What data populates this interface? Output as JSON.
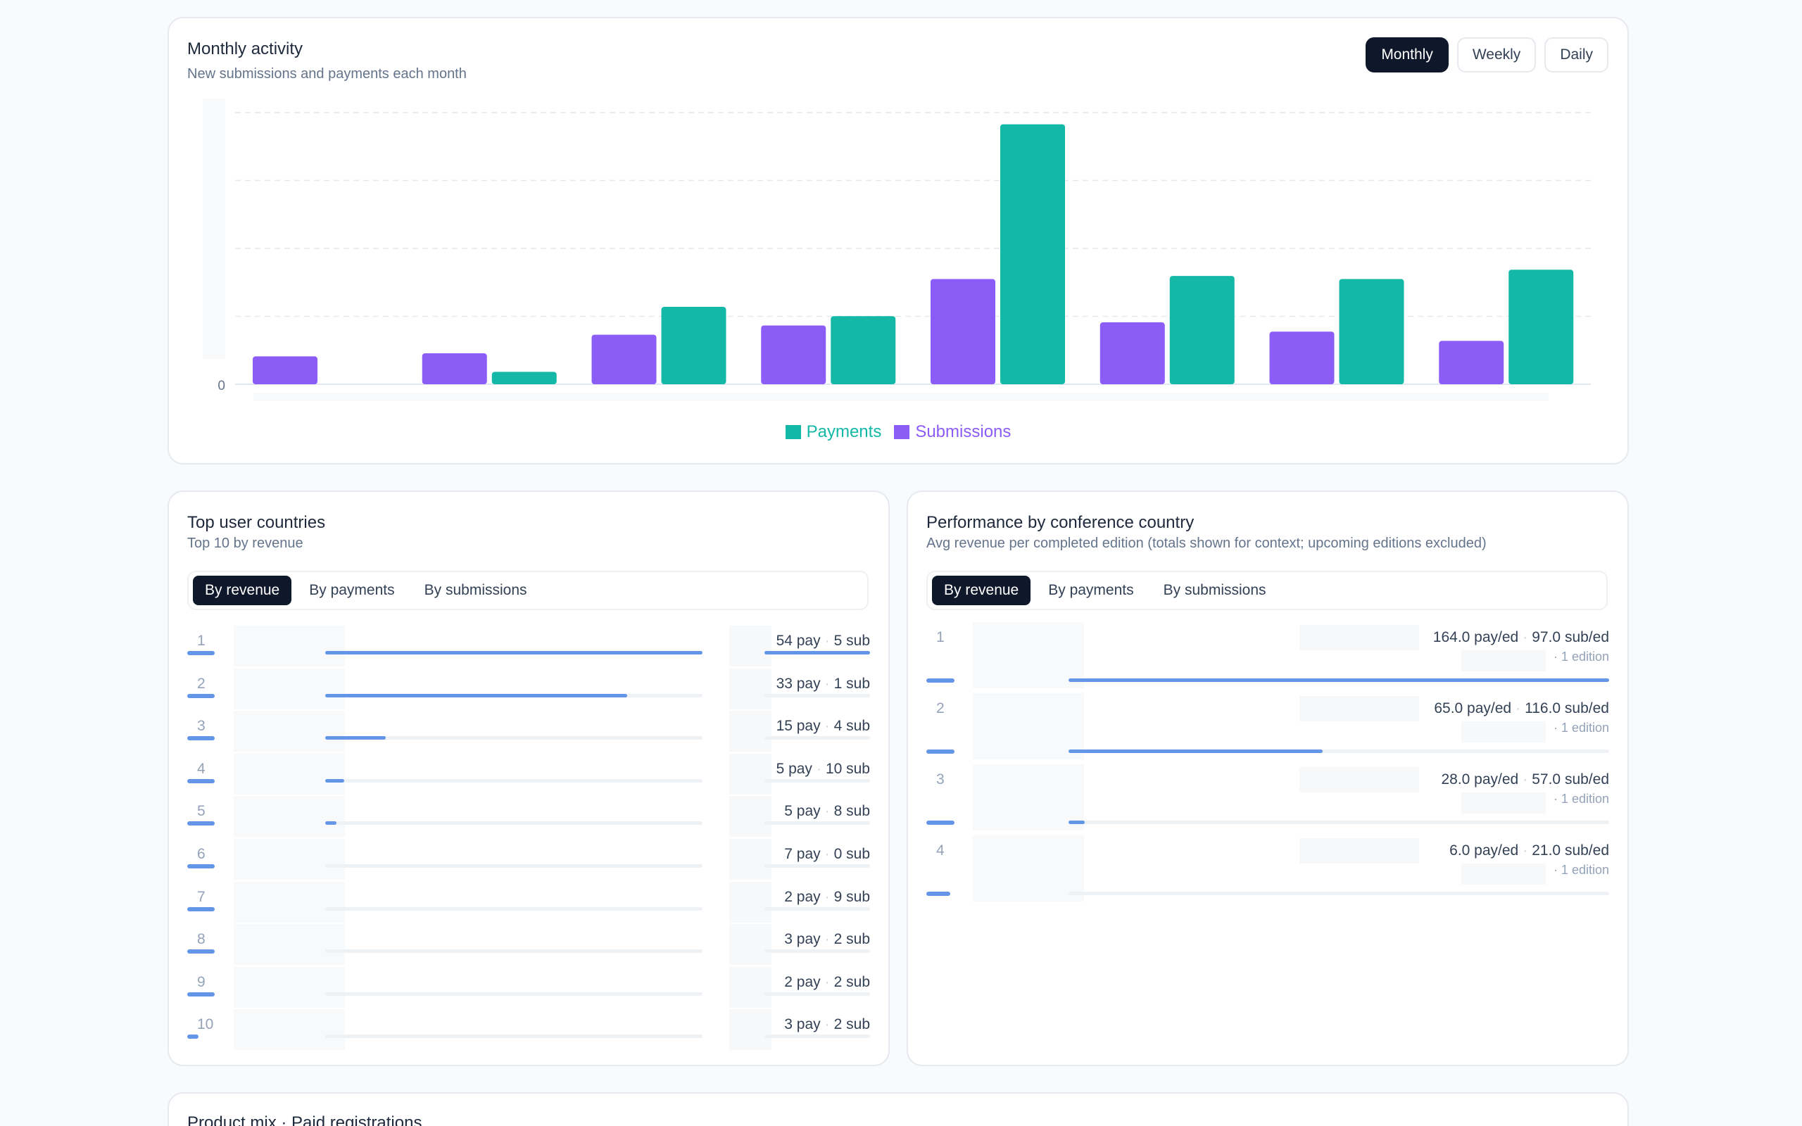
{
  "activity": {
    "title": "Monthly activity",
    "subtitle": "New submissions and payments each month",
    "periods": [
      "Monthly",
      "Weekly",
      "Daily"
    ],
    "active_period": "Monthly"
  },
  "chart_data": {
    "type": "bar",
    "title": "Monthly activity",
    "categories": [
      "",
      "",
      "",
      "",
      "",
      "",
      "",
      ""
    ],
    "series": [
      {
        "name": "Submissions",
        "color": "#8b5cf6",
        "values": [
          9,
          10,
          16,
          19,
          34,
          20,
          17,
          14
        ]
      },
      {
        "name": "Payments",
        "color": "#14b8a6",
        "values": [
          0,
          4,
          25,
          22,
          84,
          35,
          34,
          37
        ]
      }
    ],
    "y_tick_labels": [
      "0"
    ],
    "ylim": [
      0,
      88
    ],
    "grid": true,
    "legend_position": "bottom-center",
    "legend": [
      "Payments",
      "Submissions"
    ]
  },
  "user_countries": {
    "title": "Top user countries",
    "subtitle": "Top 10 by revenue",
    "tabs": [
      "By revenue",
      "By payments",
      "By submissions"
    ],
    "active_tab": "By revenue",
    "rows": [
      {
        "rank": "1",
        "pay": "54 pay",
        "sub": "5 sub",
        "share": 1.0,
        "mini": 0.15
      },
      {
        "rank": "2",
        "pay": "33 pay",
        "sub": "1 sub",
        "share": 0.8,
        "mini": 0.15
      },
      {
        "rank": "3",
        "pay": "15 pay",
        "sub": "4 sub",
        "share": 0.16,
        "mini": 0.15
      },
      {
        "rank": "4",
        "pay": "5 pay",
        "sub": "10 sub",
        "share": 0.05,
        "mini": 0.15
      },
      {
        "rank": "5",
        "pay": "5 pay",
        "sub": "8 sub",
        "share": 0.03,
        "mini": 0.15
      },
      {
        "rank": "6",
        "pay": "7 pay",
        "sub": "0 sub",
        "share": 0.0,
        "mini": 0.15
      },
      {
        "rank": "7",
        "pay": "2 pay",
        "sub": "9 sub",
        "share": 0.0,
        "mini": 0.15
      },
      {
        "rank": "8",
        "pay": "3 pay",
        "sub": "2 sub",
        "share": 0.0,
        "mini": 0.15
      },
      {
        "rank": "9",
        "pay": "2 pay",
        "sub": "2 sub",
        "share": 0.0,
        "mini": 0.15
      },
      {
        "rank": "10",
        "pay": "3 pay",
        "sub": "2 sub",
        "share": 0.0,
        "mini": 0.06
      }
    ]
  },
  "conference_countries": {
    "title": "Performance by conference country",
    "subtitle": "Avg revenue per completed edition (totals shown for context; upcoming editions excluded)",
    "tabs": [
      "By revenue",
      "By payments",
      "By submissions"
    ],
    "active_tab": "By revenue",
    "rows": [
      {
        "rank": "1",
        "pay": "164.0 pay/ed",
        "sub": "97.0 sub/ed",
        "editions": "1 edition",
        "share": 1.0
      },
      {
        "rank": "2",
        "pay": "65.0 pay/ed",
        "sub": "116.0 sub/ed",
        "editions": "1 edition",
        "share": 0.47
      },
      {
        "rank": "3",
        "pay": "28.0 pay/ed",
        "sub": "57.0 sub/ed",
        "editions": "1 edition",
        "share": 0.03
      },
      {
        "rank": "4",
        "pay": "6.0 pay/ed",
        "sub": "21.0 sub/ed",
        "editions": "1 edition",
        "share": 0.0
      }
    ]
  },
  "product_mix": {
    "title": "Product mix · Paid registrations"
  }
}
